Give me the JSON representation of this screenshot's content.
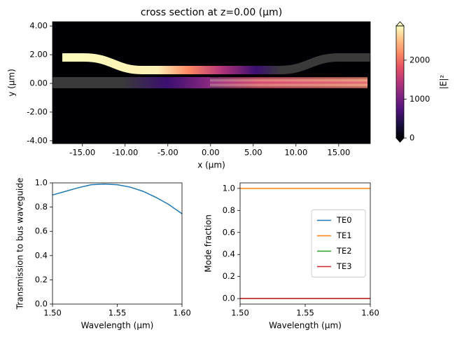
{
  "chart_data": [
    {
      "type": "image",
      "title": "cross section at z=0.00 (μm)",
      "xlabel": "x (μm)",
      "ylabel": "y (μm)",
      "xlim": [
        -18.5,
        18.7
      ],
      "ylim": [
        -4.2,
        4.3
      ],
      "xticks": [
        {
          "value": -15,
          "label": "-15.00"
        },
        {
          "value": -10,
          "label": "-10.00"
        },
        {
          "value": -5,
          "label": "-5.00"
        },
        {
          "value": 0,
          "label": "0.00"
        },
        {
          "value": 5,
          "label": "5.00"
        },
        {
          "value": 10,
          "label": "10.00"
        },
        {
          "value": 15,
          "label": "15.00"
        }
      ],
      "yticks": [
        {
          "value": -4,
          "label": "-4.00"
        },
        {
          "value": -2,
          "label": "-2.00"
        },
        {
          "value": 0,
          "label": "0.00"
        },
        {
          "value": 2,
          "label": "2.00"
        },
        {
          "value": 4,
          "label": "4.00"
        }
      ],
      "colorbar": {
        "label": "|E|²",
        "lim": [
          0,
          2880
        ],
        "ticks": [
          0,
          1000,
          2000
        ]
      }
    },
    {
      "type": "line",
      "xlabel": "Wavelength (μm)",
      "ylabel": "Transmission to bus waveguide",
      "x": [
        1.5,
        1.51,
        1.52,
        1.53,
        1.54,
        1.55,
        1.56,
        1.57,
        1.58,
        1.59,
        1.6
      ],
      "series": [
        {
          "name": null,
          "color": "#1f77b4",
          "values": [
            0.9,
            0.93,
            0.96,
            0.985,
            0.99,
            0.985,
            0.965,
            0.93,
            0.88,
            0.82,
            0.745
          ]
        }
      ],
      "xlim": [
        1.5,
        1.6
      ],
      "ylim": [
        0,
        1
      ],
      "xticks": [
        {
          "value": 1.5,
          "label": "1.50"
        },
        {
          "value": 1.55,
          "label": "1.55"
        },
        {
          "value": 1.6,
          "label": "1.60"
        }
      ],
      "yticks": [
        {
          "value": 0,
          "label": "0.0"
        },
        {
          "value": 0.2,
          "label": "0.2"
        },
        {
          "value": 0.4,
          "label": "0.4"
        },
        {
          "value": 0.6,
          "label": "0.6"
        },
        {
          "value": 0.8,
          "label": "0.8"
        },
        {
          "value": 1,
          "label": "1.0"
        }
      ]
    },
    {
      "type": "line",
      "xlabel": "Wavelength (μm)",
      "ylabel": "Mode fraction",
      "legend": "center right",
      "x": [
        1.5,
        1.6
      ],
      "series": [
        {
          "name": "TE0",
          "color": "#1f77b4",
          "values": [
            0,
            0
          ]
        },
        {
          "name": "TE1",
          "color": "#ff7f0e",
          "values": [
            1,
            1
          ]
        },
        {
          "name": "TE2",
          "color": "#2ca02c",
          "values": [
            0,
            0
          ]
        },
        {
          "name": "TE3",
          "color": "#d62728",
          "values": [
            0,
            0
          ]
        }
      ],
      "xlim": [
        1.5,
        1.6
      ],
      "ylim": [
        -0.05,
        1.05
      ],
      "xticks": [
        {
          "value": 1.5,
          "label": "1.50"
        },
        {
          "value": 1.55,
          "label": "1.55"
        },
        {
          "value": 1.6,
          "label": "1.60"
        }
      ],
      "yticks": [
        {
          "value": 0,
          "label": "0.0"
        },
        {
          "value": 0.2,
          "label": "0.2"
        },
        {
          "value": 0.4,
          "label": "0.4"
        },
        {
          "value": 0.6,
          "label": "0.6"
        },
        {
          "value": 0.8,
          "label": "0.8"
        },
        {
          "value": 1,
          "label": "1.0"
        }
      ]
    }
  ]
}
